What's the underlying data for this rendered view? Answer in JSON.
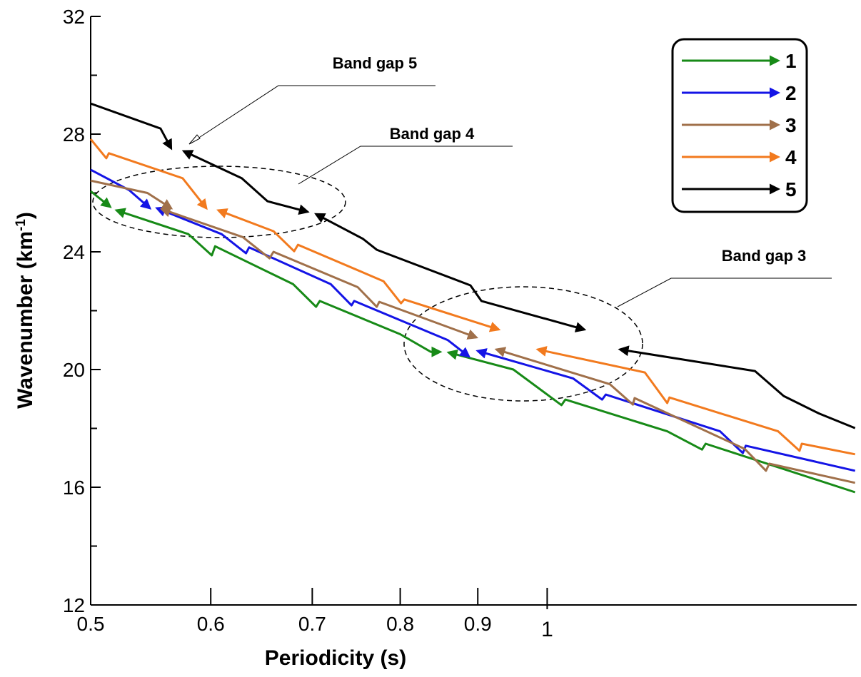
{
  "chart_data": {
    "type": "line",
    "xlabel": "Periodicity (s)",
    "ylabel": {
      "text": "Wavenumber (km",
      "sup": "-1",
      "after": ")"
    },
    "xscale": "log",
    "xlim": [
      0.5,
      1.6
    ],
    "xticks": [
      0.5,
      0.6,
      0.7,
      0.8,
      0.9,
      1
    ],
    "ylim": [
      12,
      32
    ],
    "yticks": [
      12,
      16,
      20,
      24,
      28,
      32
    ],
    "yminorticks": [
      14,
      18,
      22,
      26,
      30
    ],
    "legend": "top-right",
    "annotations": [
      "Band gap 5",
      "Band gap 4",
      "Band gap 3"
    ],
    "series": [
      {
        "name": "1",
        "color": "#178a17",
        "x": [
          0.5,
          0.515,
          null,
          0.52,
          0.58,
          0.601,
          0.604,
          0.68,
          0.704,
          0.708,
          0.8,
          0.838,
          0.85,
          null,
          0.861,
          0.95,
          1.022,
          1.028,
          1.2,
          1.265,
          1.272,
          1.596
        ],
        "values": [
          26.06,
          25.53,
          null,
          25.41,
          24.6,
          23.88,
          24.19,
          22.9,
          22.13,
          22.33,
          21.2,
          20.6,
          20.6,
          null,
          20.58,
          20.0,
          18.79,
          18.98,
          17.9,
          17.28,
          17.48,
          15.83
        ]
      },
      {
        "name": "2",
        "color": "#1414e6",
        "x": [
          0.5,
          0.53,
          0.547,
          null,
          0.553,
          0.61,
          0.633,
          0.636,
          0.72,
          0.743,
          0.746,
          0.86,
          0.888,
          null,
          0.9,
          1.04,
          1.087,
          1.093,
          1.3,
          1.346,
          1.352,
          1.596
        ],
        "values": [
          26.79,
          26.1,
          25.48,
          null,
          25.48,
          24.6,
          23.95,
          24.15,
          22.9,
          22.18,
          22.33,
          21.0,
          20.44,
          null,
          20.63,
          19.7,
          18.98,
          19.15,
          17.9,
          17.16,
          17.41,
          16.56
        ]
      },
      {
        "name": "3",
        "color": "#a0704a",
        "x": [
          0.5,
          0.545,
          0.565,
          null,
          0.557,
          0.63,
          0.656,
          0.66,
          0.75,
          0.772,
          0.775,
          0.898,
          null,
          0.926,
          1.1,
          1.139,
          1.142,
          1.35,
          1.394,
          1.401,
          1.596
        ],
        "values": [
          26.42,
          26.0,
          25.48,
          null,
          25.45,
          24.5,
          23.78,
          24.0,
          22.8,
          22.13,
          22.3,
          21.09,
          null,
          20.68,
          19.5,
          18.81,
          19.03,
          17.3,
          16.56,
          16.8,
          16.15
        ]
      },
      {
        "name": "4",
        "color": "#f27a1e",
        "x": [
          0.5,
          0.512,
          0.514,
          0.575,
          0.596,
          null,
          0.607,
          0.66,
          0.681,
          0.685,
          0.78,
          0.801,
          0.805,
          0.929,
          null,
          0.986,
          1.16,
          1.2,
          1.204,
          1.42,
          1.467,
          1.472,
          1.596
        ],
        "values": [
          27.83,
          27.18,
          27.35,
          26.5,
          25.48,
          null,
          25.41,
          24.7,
          24.02,
          24.24,
          23.0,
          22.25,
          22.38,
          21.36,
          null,
          20.68,
          19.9,
          18.86,
          19.05,
          17.9,
          17.24,
          17.48,
          17.12
        ]
      },
      {
        "name": "5",
        "color": "#000000",
        "x": [
          0.5,
          0.556,
          0.565,
          null,
          0.576,
          0.629,
          0.654,
          0.695,
          null,
          0.704,
          0.756,
          0.772,
          0.89,
          0.905,
          1.058,
          null,
          1.117,
          1.371,
          1.432,
          1.512,
          1.596
        ],
        "values": [
          29.04,
          28.19,
          27.52,
          null,
          27.42,
          26.5,
          25.72,
          25.36,
          null,
          25.28,
          24.44,
          24.07,
          22.86,
          22.33,
          21.36,
          null,
          20.68,
          19.95,
          19.1,
          18.5,
          18.01
        ]
      }
    ]
  }
}
